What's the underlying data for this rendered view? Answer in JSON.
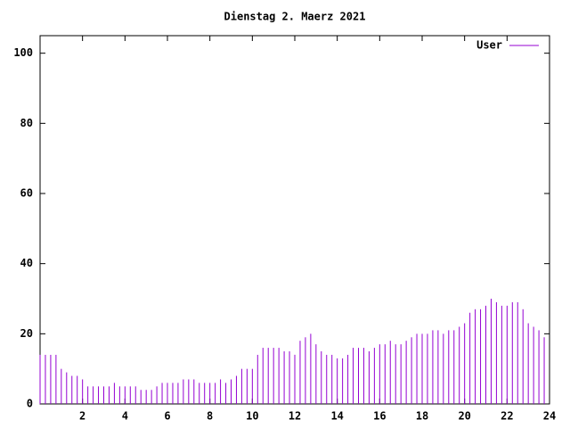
{
  "chart_data": {
    "type": "impulse",
    "title": "Dienstag 2. Maerz 2021",
    "series": [
      {
        "name": "User",
        "color": "#9400d3",
        "x": [
          0,
          0.25,
          0.5,
          0.75,
          1,
          1.25,
          1.5,
          1.75,
          2,
          2.25,
          2.5,
          2.75,
          3,
          3.25,
          3.5,
          3.75,
          4,
          4.25,
          4.5,
          4.75,
          5,
          5.25,
          5.5,
          5.75,
          6,
          6.25,
          6.5,
          6.75,
          7,
          7.25,
          7.5,
          7.75,
          8,
          8.25,
          8.5,
          8.75,
          9,
          9.25,
          9.5,
          9.75,
          10,
          10.25,
          10.5,
          10.75,
          11,
          11.25,
          11.5,
          11.75,
          12,
          12.25,
          12.5,
          12.75,
          13,
          13.25,
          13.5,
          13.75,
          14,
          14.25,
          14.5,
          14.75,
          15,
          15.25,
          15.5,
          15.75,
          16,
          16.25,
          16.5,
          16.75,
          17,
          17.25,
          17.5,
          17.75,
          18,
          18.25,
          18.5,
          18.75,
          19,
          19.25,
          19.5,
          19.75,
          20,
          20.25,
          20.5,
          20.75,
          21,
          21.25,
          21.5,
          21.75,
          22,
          22.25,
          22.5,
          22.75,
          23,
          23.25,
          23.5,
          23.75
        ],
        "values": [
          14,
          14,
          14,
          14,
          10,
          9,
          8,
          8,
          7,
          5,
          5,
          5,
          5,
          5,
          6,
          5,
          5,
          5,
          5,
          4,
          4,
          4,
          5,
          6,
          6,
          6,
          6,
          7,
          7,
          7,
          6,
          6,
          6,
          6,
          7,
          6,
          7,
          8,
          10,
          10,
          10,
          14,
          16,
          16,
          16,
          16,
          15,
          15,
          14,
          18,
          19,
          20,
          17,
          15,
          14,
          14,
          13,
          13,
          14,
          16,
          16,
          16,
          15,
          16,
          17,
          17,
          18,
          17,
          17,
          18,
          19,
          20,
          20,
          20,
          21,
          21,
          20,
          21,
          21,
          22,
          23,
          26,
          27,
          27,
          28,
          30,
          29,
          28,
          28,
          29,
          29,
          27,
          23,
          22,
          21,
          19
        ]
      }
    ],
    "xlim": [
      0,
      24
    ],
    "xticks": [
      2,
      4,
      6,
      8,
      10,
      12,
      14,
      16,
      18,
      20,
      22,
      24
    ],
    "ylim": [
      0,
      105
    ],
    "yticks": [
      0,
      20,
      40,
      60,
      80,
      100
    ],
    "legend": "top-right"
  }
}
